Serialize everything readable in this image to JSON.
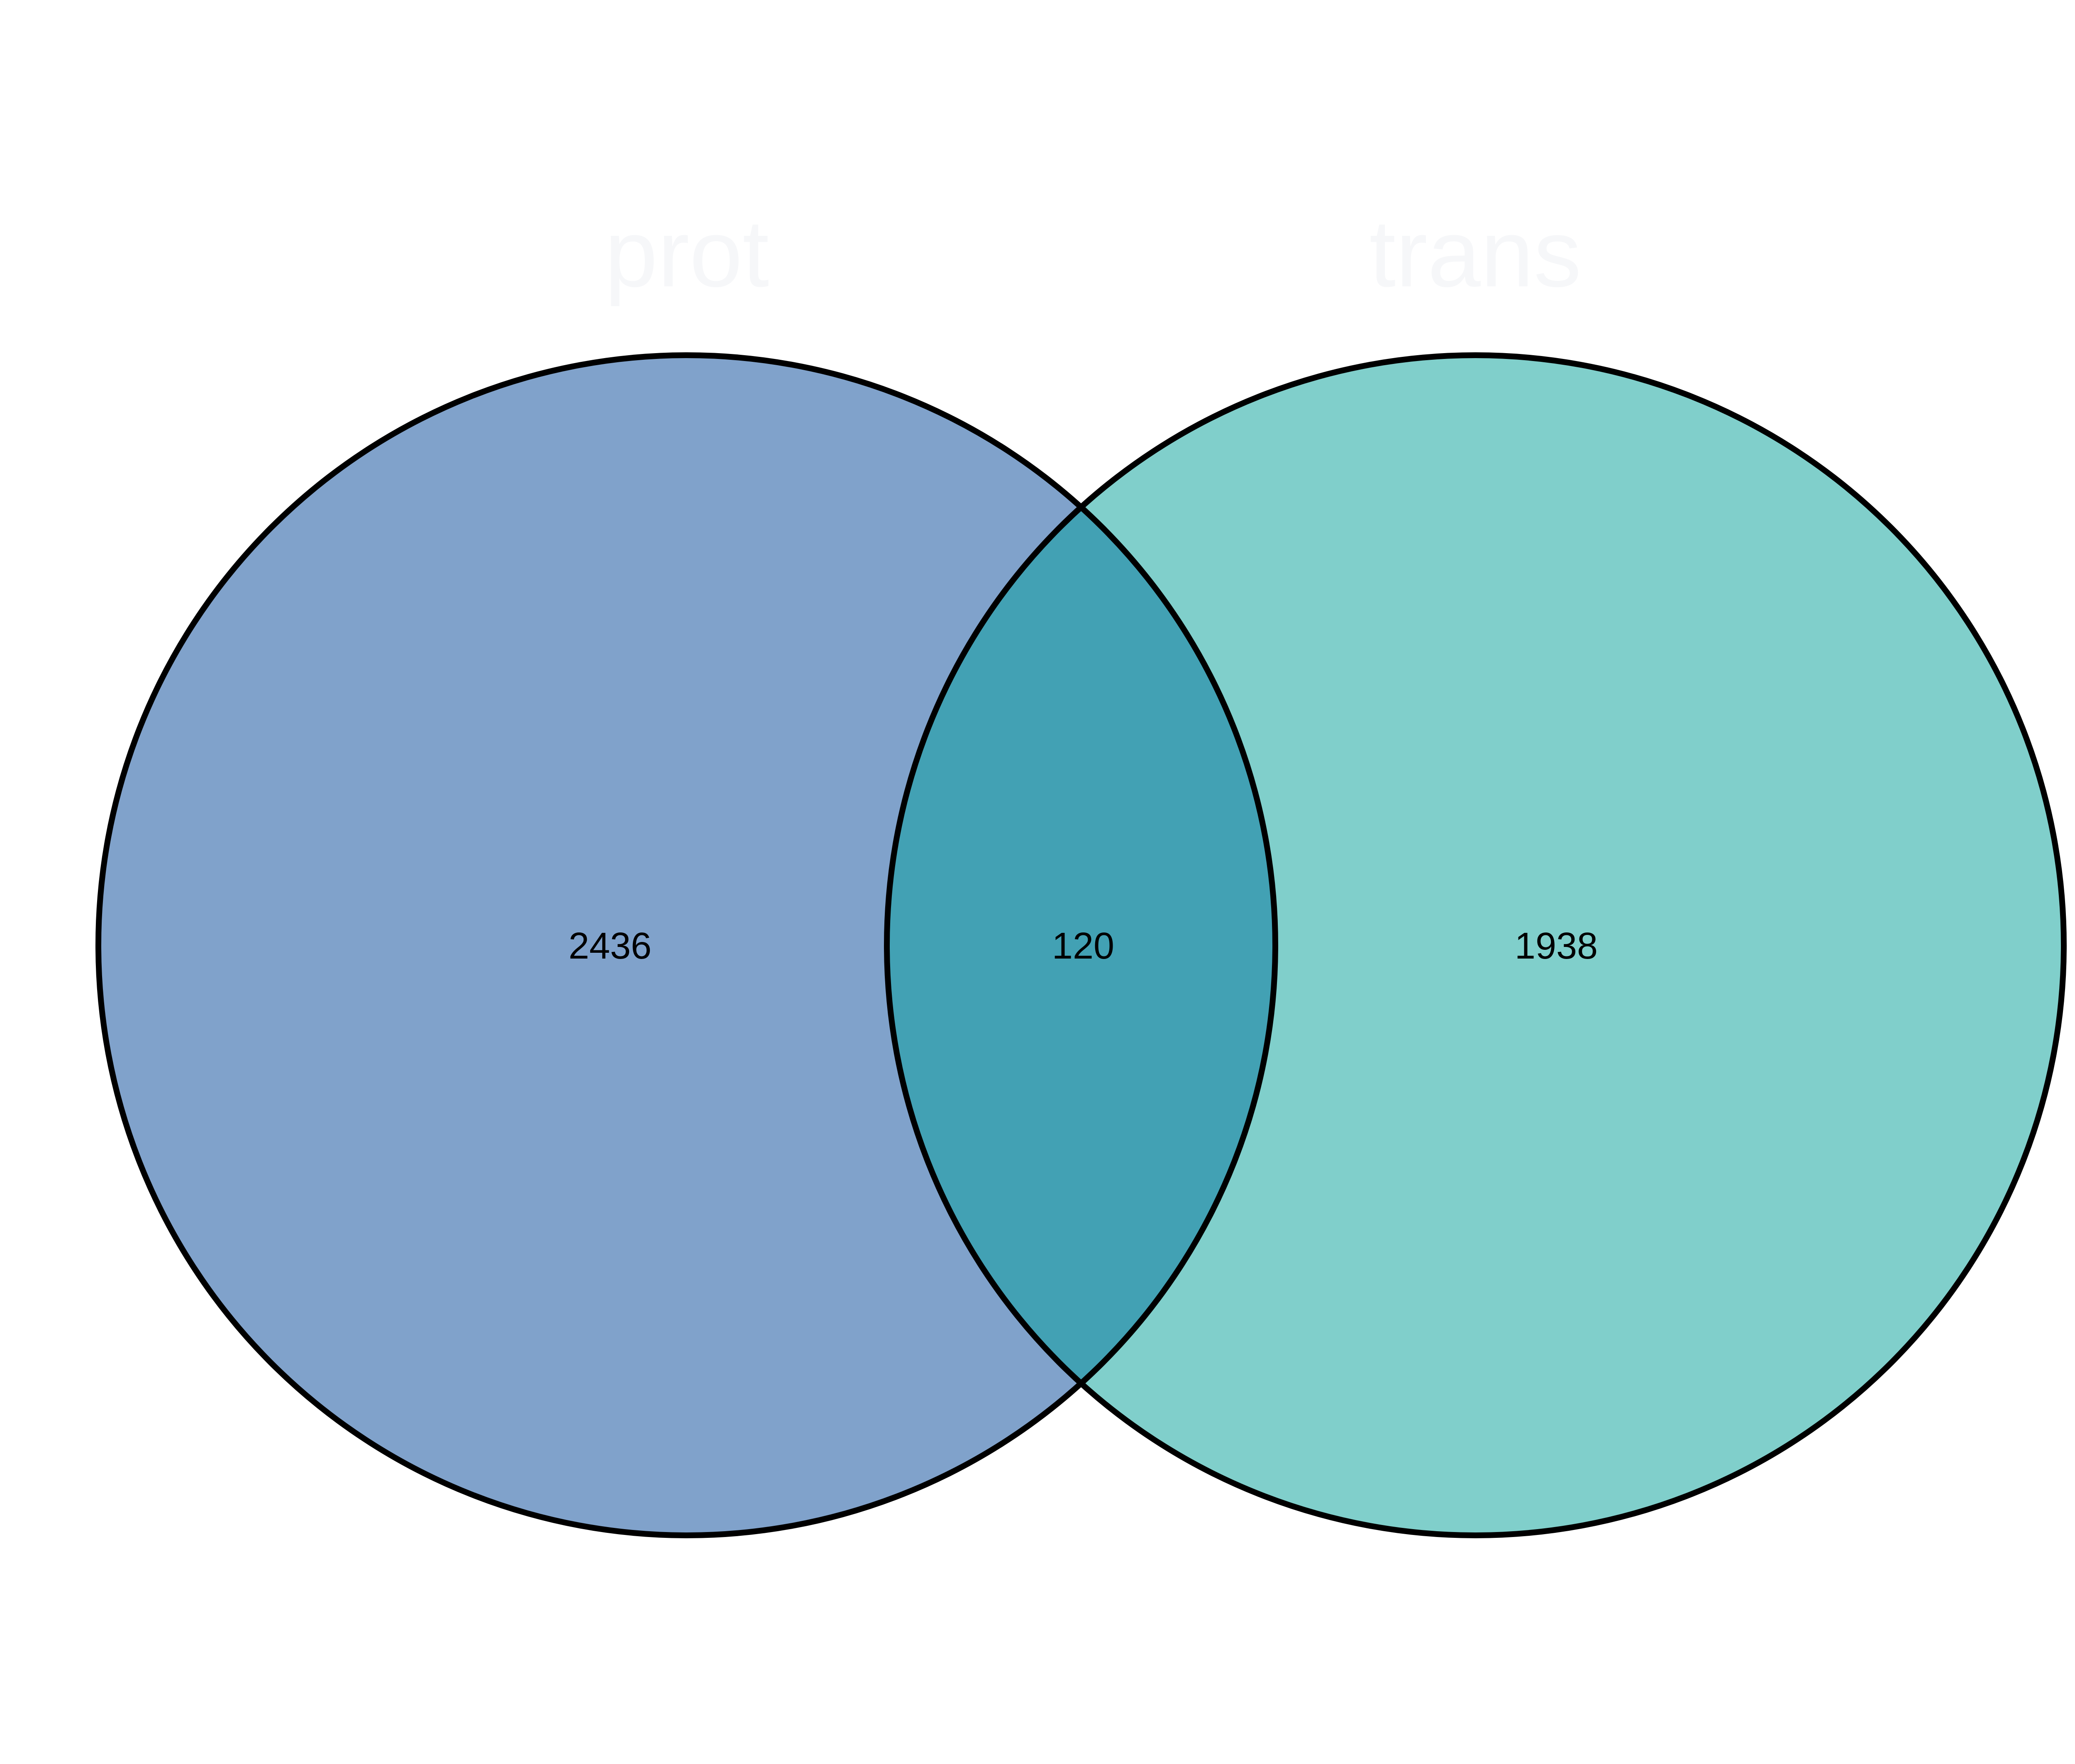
{
  "diagram": {
    "type": "venn",
    "sets": [
      {
        "id": "left",
        "name": "prot",
        "count": "2436",
        "color": "#80A2CB",
        "label_color": "#F6F7F9"
      },
      {
        "id": "right",
        "name": "trans",
        "count": "1938",
        "color": "#80CFCB",
        "label_color": "#F6F7F9"
      }
    ],
    "intersection": {
      "count": "120",
      "color": "#42A1B4"
    },
    "outline_color": "#000000"
  }
}
